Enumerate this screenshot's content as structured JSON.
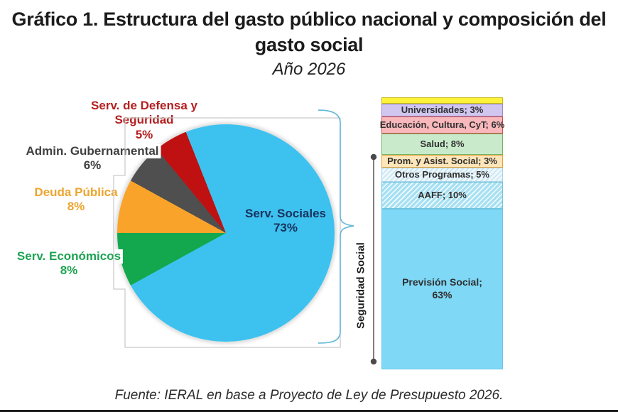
{
  "title": {
    "line1": "Gráfico 1. Estructura del gasto público nacional y composición del",
    "line2": "gasto social",
    "subtitle": "Año 2026"
  },
  "caption": "Fuente: IERAL en base a Proyecto de Ley de Presupuesto 2026.",
  "chart_data": [
    {
      "type": "pie",
      "name": "Estructura del gasto público nacional",
      "unit": "%",
      "start_angle_deg": 338.4,
      "slices": [
        {
          "name": "Serv. Sociales",
          "value": 73,
          "color": "#3dc2f0",
          "label_color": "#17325c",
          "label_lines": [
            "Serv. Sociales",
            "73%"
          ]
        },
        {
          "name": "Serv. Económicos",
          "value": 8,
          "color": "#13a84e",
          "label_color": "#1ca351",
          "label_lines": [
            "Serv. Económicos",
            "8%"
          ]
        },
        {
          "name": "Deuda Pública",
          "value": 8,
          "color": "#f9a32b",
          "label_color": "#eda52f",
          "label_lines": [
            "Deuda Pública",
            "8%"
          ]
        },
        {
          "name": "Admin. Gubernamental",
          "value": 6,
          "color": "#4f4f4f",
          "label_color": "#3f3f3f",
          "label_lines": [
            "Admin. Gubernamental",
            "6%"
          ]
        },
        {
          "name": "Serv. de Defensa y Seguridad",
          "value": 5,
          "color": "#c01112",
          "label_color": "#b42020",
          "label_lines": [
            "Serv. de Defensa y",
            "Seguridad",
            "5%"
          ]
        }
      ]
    },
    {
      "type": "stacked_bar",
      "name": "Composición del gasto social",
      "unit": "%",
      "segments": [
        {
          "name": "",
          "value": 2,
          "lines": [],
          "fill": "#fef23b",
          "border": "#c9ba17",
          "hatch": false
        },
        {
          "name": "Universidades",
          "value": 3,
          "lines": [
            "Universidades; 3%"
          ],
          "fill": "#d0c6ef",
          "border": "#9d8ac8",
          "hatch": false
        },
        {
          "name": "Educación, Cultura, CyT",
          "value": 6,
          "lines": [
            "Educación, Cultura, CyT; 6%"
          ],
          "fill": "#f9b8bc",
          "border": "#d24f4f",
          "hatch": false
        },
        {
          "name": "Salud",
          "value": 8,
          "lines": [
            "Salud; 8%"
          ],
          "fill": "#c9ebcb",
          "border": "#74b361",
          "hatch": false
        },
        {
          "name": "Prom. y Asist. Social",
          "value": 3,
          "lines": [
            "Prom. y Asist. Social; 3%"
          ],
          "fill": "#fce5b8",
          "border": "#e6a23c",
          "hatch": false
        },
        {
          "name": "Otros Programas",
          "value": 5,
          "lines": [
            "Otros Programas; 5%"
          ],
          "fill": "#edf7fc",
          "border": "#a8d4e8",
          "hatch": true,
          "hatch_color": "rgba(150,205,230,0.45)"
        },
        {
          "name": "AAFF",
          "value": 10,
          "lines": [
            "AAFF; 10%"
          ],
          "fill": "#a7e0f3",
          "border": "#74c3dc",
          "hatch": true,
          "hatch_color": "rgba(255,255,255,0.9)"
        },
        {
          "name": "Previsión Social",
          "value": 63,
          "lines": [
            "Previsión Social;",
            "63%"
          ],
          "fill": "#7ed8f6",
          "border": "#6cc8e8",
          "hatch": false
        }
      ],
      "bracket": {
        "label": "Seguridad Social"
      }
    }
  ],
  "decor": {
    "brace_color": "#69bad8",
    "border_color": "#c9c9c9",
    "range_line_color": "#555555"
  }
}
